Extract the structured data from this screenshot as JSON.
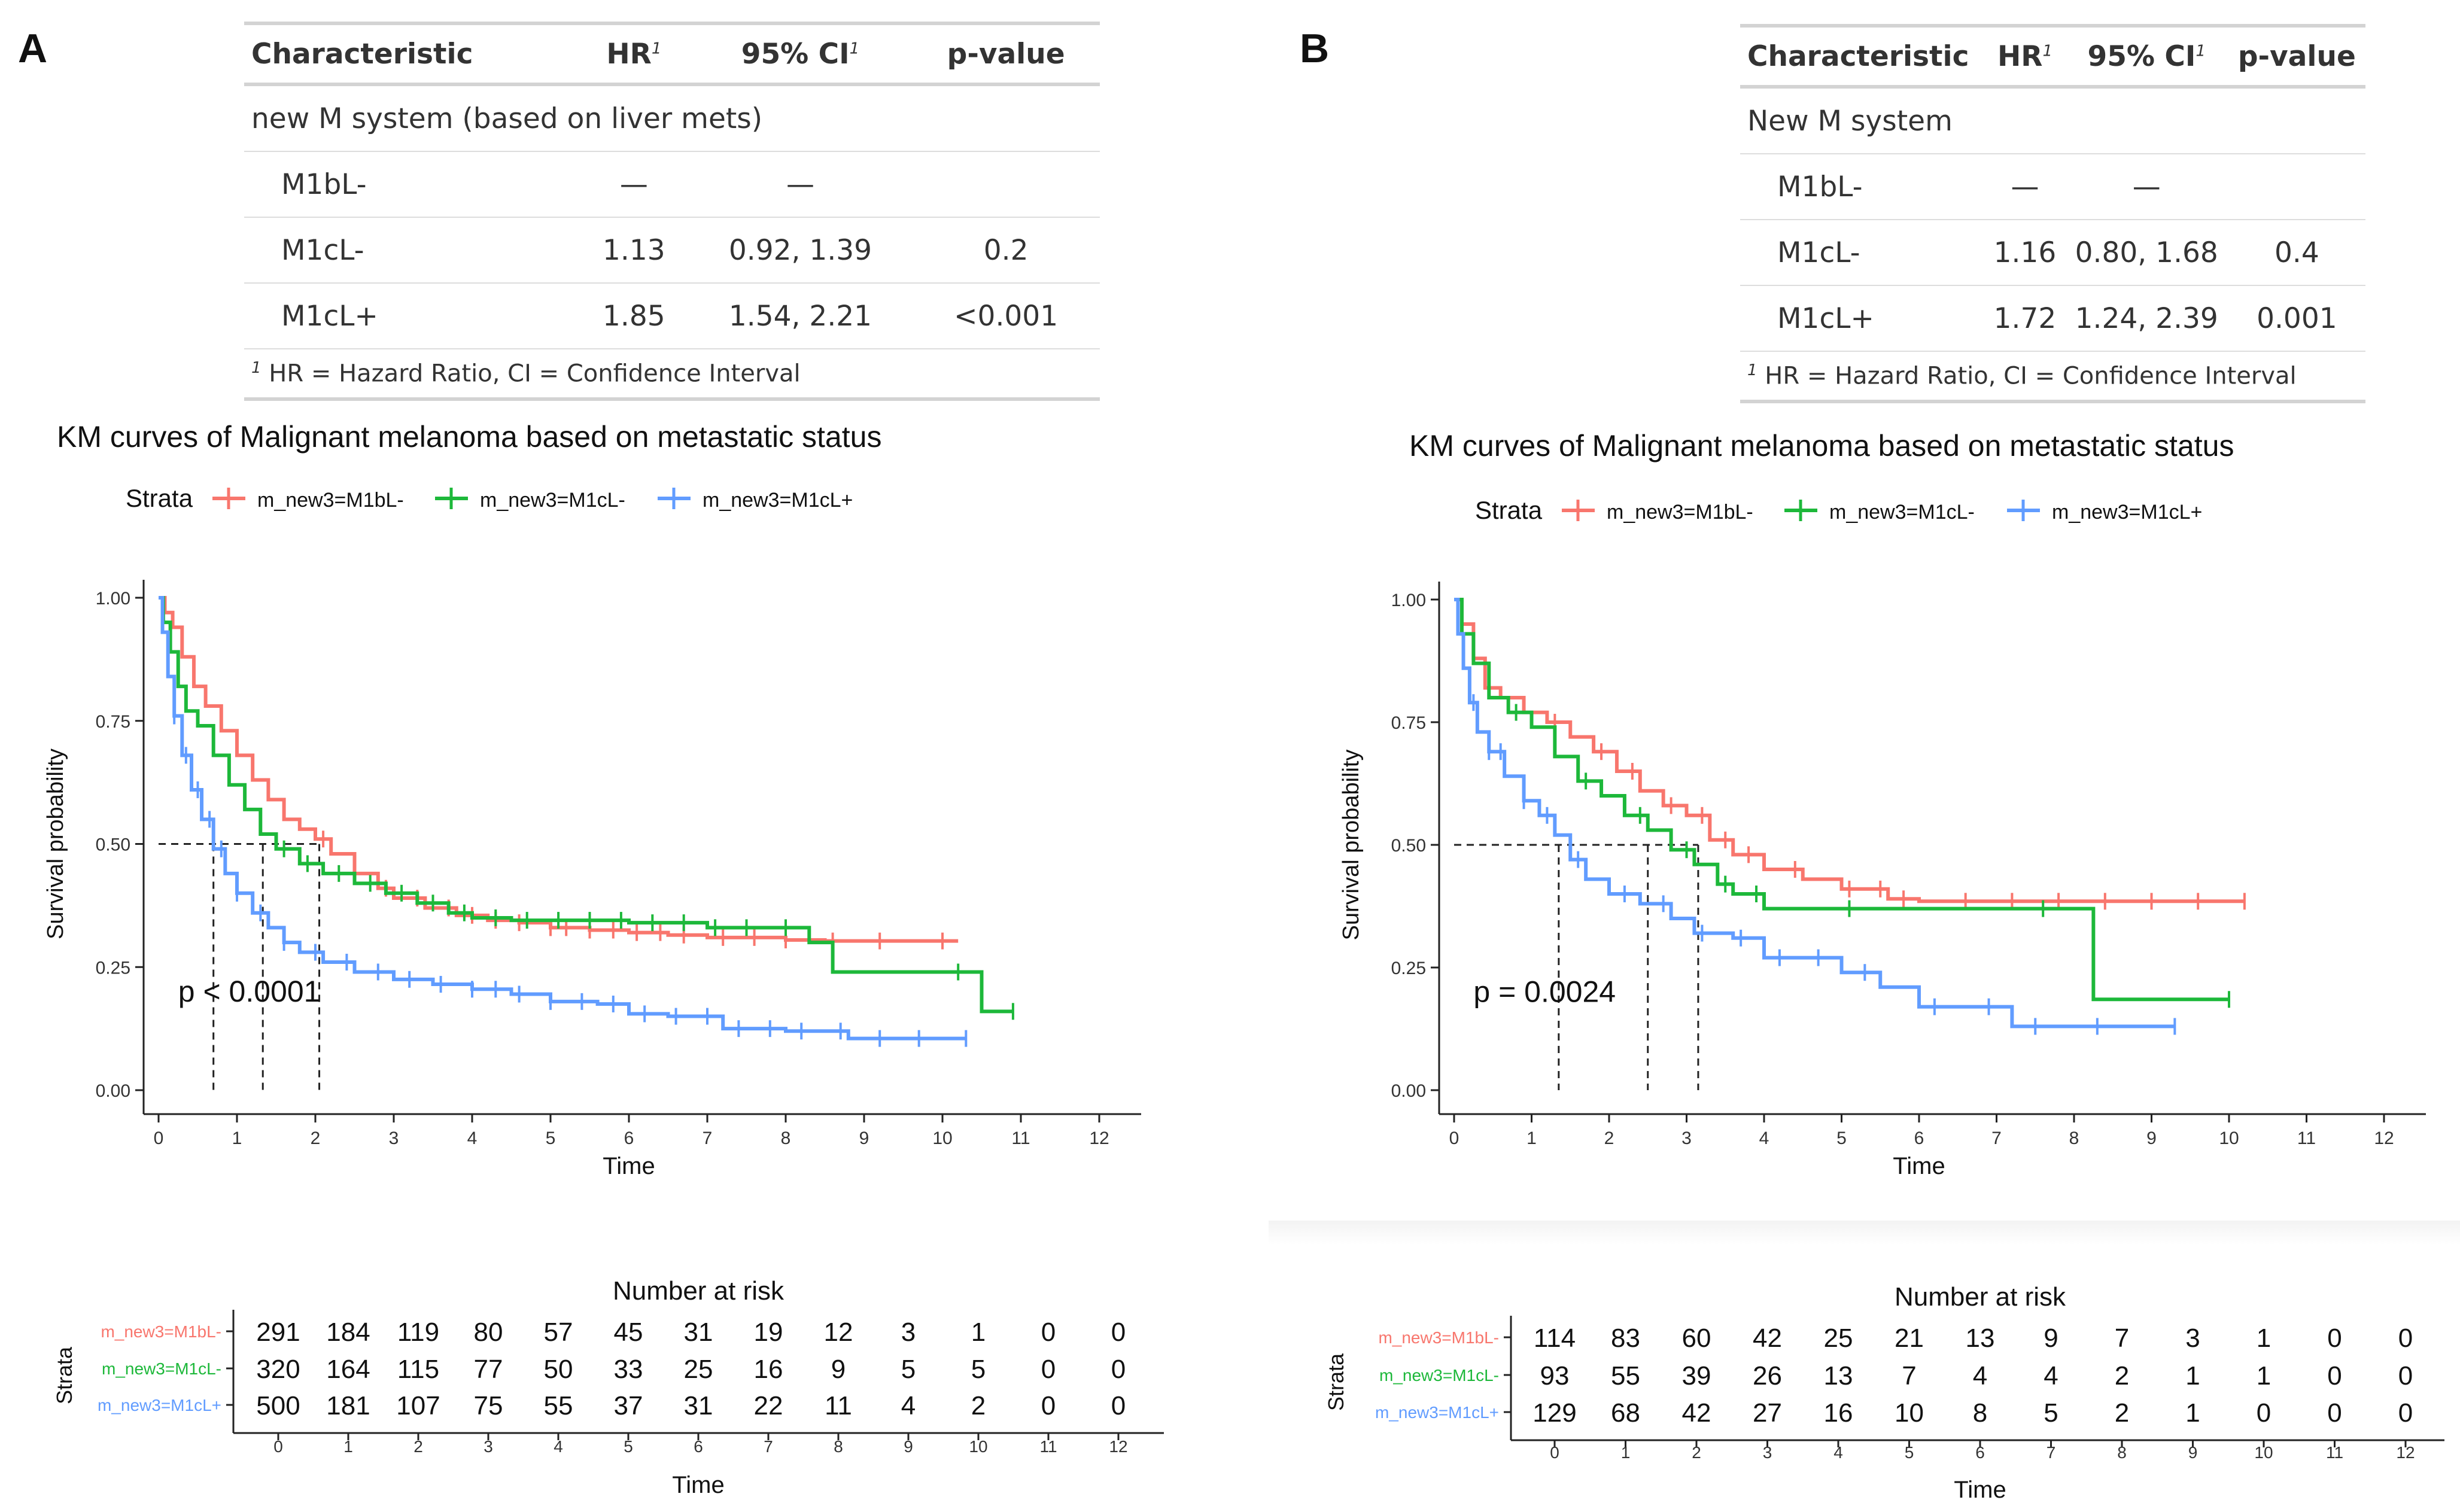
{
  "panels": [
    {
      "letter": "A",
      "table": {
        "headers": {
          "characteristic": "Characteristic",
          "hr": "HR",
          "ci": "95% CI",
          "p": "p-value",
          "sup": "1"
        },
        "group_label": "new M system (based on liver mets)",
        "rows": [
          {
            "label": "M1bL-",
            "hr": "—",
            "ci": "—",
            "p": ""
          },
          {
            "label": "M1cL-",
            "hr": "1.13",
            "ci": "0.92, 1.39",
            "p": "0.2"
          },
          {
            "label": "M1cL+",
            "hr": "1.85",
            "ci": "1.54, 2.21",
            "p": "<0.001"
          }
        ],
        "footnote_sup": "1",
        "footnote": "HR = Hazard Ratio, CI = Confidence Interval"
      }
    },
    {
      "letter": "B",
      "table": {
        "headers": {
          "characteristic": "Characteristic",
          "hr": "HR",
          "ci": "95% CI",
          "p": "p-value",
          "sup": "1"
        },
        "group_label": "New M system",
        "rows": [
          {
            "label": "M1bL-",
            "hr": "—",
            "ci": "—",
            "p": ""
          },
          {
            "label": "M1cL-",
            "hr": "1.16",
            "ci": "0.80, 1.68",
            "p": "0.4"
          },
          {
            "label": "M1cL+",
            "hr": "1.72",
            "ci": "1.24, 2.39",
            "p": "0.001"
          }
        ],
        "footnote_sup": "1",
        "footnote": "HR = Hazard Ratio, CI = Confidence Interval"
      }
    }
  ],
  "colors": {
    "M1bL-": "#F8766D",
    "M1cL-": "#1DB83A",
    "M1cL+": "#619CFF"
  },
  "chart_data": [
    {
      "type": "line",
      "subtype": "kaplan-meier",
      "panel": "A",
      "title": "KM curves of Malignant melanoma based on metastatic status",
      "legend_title": "Strata",
      "xlabel": "Time",
      "ylabel": "Survival probability",
      "xlim": [
        0,
        12
      ],
      "ylim": [
        0,
        1
      ],
      "x_ticks": [
        0,
        1,
        2,
        3,
        4,
        5,
        6,
        7,
        8,
        9,
        10,
        11,
        12
      ],
      "y_ticks": [
        "0.00",
        "0.25",
        "0.50",
        "0.75",
        "1.00"
      ],
      "pvalue_text": "p < 0.0001",
      "median_line": {
        "y": 0.5,
        "medians": [
          0.7,
          1.33,
          2.05
        ]
      },
      "series": [
        {
          "name": "m_new3=M1bL-",
          "color": "#F8766D",
          "points": [
            [
              0,
              1
            ],
            [
              0.08,
              0.97
            ],
            [
              0.18,
              0.94
            ],
            [
              0.3,
              0.88
            ],
            [
              0.45,
              0.82
            ],
            [
              0.6,
              0.78
            ],
            [
              0.8,
              0.73
            ],
            [
              1.0,
              0.68
            ],
            [
              1.2,
              0.63
            ],
            [
              1.4,
              0.59
            ],
            [
              1.6,
              0.55
            ],
            [
              1.8,
              0.53
            ],
            [
              2.0,
              0.51
            ],
            [
              2.2,
              0.48
            ],
            [
              2.5,
              0.44
            ],
            [
              2.8,
              0.41
            ],
            [
              3.0,
              0.39
            ],
            [
              3.4,
              0.37
            ],
            [
              3.8,
              0.355
            ],
            [
              4.2,
              0.345
            ],
            [
              4.6,
              0.34
            ],
            [
              5.0,
              0.33
            ],
            [
              5.5,
              0.325
            ],
            [
              6.0,
              0.32
            ],
            [
              6.5,
              0.315
            ],
            [
              7.0,
              0.31
            ],
            [
              8.0,
              0.305
            ],
            [
              8.5,
              0.303
            ],
            [
              10.2,
              0.303
            ]
          ],
          "censor_x": [
            2.1,
            2.5,
            2.9,
            3.3,
            3.7,
            4.0,
            4.3,
            4.6,
            5.0,
            5.2,
            5.5,
            5.8,
            6.1,
            6.4,
            6.7,
            7.2,
            7.6,
            8.0,
            8.6,
            9.2,
            10.0
          ]
        },
        {
          "name": "m_new3=M1cL-",
          "color": "#1DB83A",
          "points": [
            [
              0,
              1
            ],
            [
              0.06,
              0.95
            ],
            [
              0.15,
              0.89
            ],
            [
              0.25,
              0.82
            ],
            [
              0.35,
              0.77
            ],
            [
              0.5,
              0.74
            ],
            [
              0.7,
              0.68
            ],
            [
              0.9,
              0.62
            ],
            [
              1.1,
              0.57
            ],
            [
              1.3,
              0.52
            ],
            [
              1.5,
              0.49
            ],
            [
              1.8,
              0.46
            ],
            [
              2.1,
              0.44
            ],
            [
              2.5,
              0.42
            ],
            [
              2.9,
              0.4
            ],
            [
              3.3,
              0.38
            ],
            [
              3.7,
              0.36
            ],
            [
              4.0,
              0.35
            ],
            [
              4.5,
              0.345
            ],
            [
              5.0,
              0.345
            ],
            [
              6.0,
              0.34
            ],
            [
              7.0,
              0.33
            ],
            [
              7.5,
              0.33
            ],
            [
              8.3,
              0.3
            ],
            [
              8.6,
              0.24
            ],
            [
              10.5,
              0.24
            ],
            [
              10.5,
              0.16
            ],
            [
              10.9,
              0.16
            ]
          ],
          "censor_x": [
            1.6,
            1.9,
            2.3,
            2.7,
            3.1,
            3.5,
            3.9,
            4.3,
            4.7,
            5.1,
            5.5,
            5.9,
            6.3,
            6.7,
            7.1,
            7.5,
            8.0,
            10.2,
            10.9
          ]
        },
        {
          "name": "m_new3=M1cL+",
          "color": "#619CFF",
          "points": [
            [
              0,
              1
            ],
            [
              0.05,
              0.93
            ],
            [
              0.12,
              0.84
            ],
            [
              0.2,
              0.76
            ],
            [
              0.3,
              0.68
            ],
            [
              0.42,
              0.61
            ],
            [
              0.55,
              0.55
            ],
            [
              0.7,
              0.49
            ],
            [
              0.85,
              0.44
            ],
            [
              1.0,
              0.4
            ],
            [
              1.2,
              0.36
            ],
            [
              1.4,
              0.33
            ],
            [
              1.6,
              0.3
            ],
            [
              1.8,
              0.28
            ],
            [
              2.1,
              0.26
            ],
            [
              2.5,
              0.24
            ],
            [
              3.0,
              0.225
            ],
            [
              3.5,
              0.215
            ],
            [
              4.0,
              0.205
            ],
            [
              4.5,
              0.195
            ],
            [
              5.0,
              0.18
            ],
            [
              5.6,
              0.175
            ],
            [
              6.0,
              0.155
            ],
            [
              6.5,
              0.15
            ],
            [
              7.2,
              0.125
            ],
            [
              8.0,
              0.12
            ],
            [
              8.8,
              0.105
            ],
            [
              10.3,
              0.105
            ]
          ],
          "censor_x": [
            0.2,
            0.35,
            0.5,
            0.65,
            0.8,
            1.0,
            1.3,
            1.6,
            2.0,
            2.4,
            2.8,
            3.2,
            3.6,
            4.0,
            4.3,
            4.6,
            5.0,
            5.4,
            5.8,
            6.2,
            6.6,
            7.0,
            7.4,
            7.8,
            8.2,
            8.7,
            9.2,
            9.7,
            10.3
          ]
        }
      ],
      "risk_table": {
        "title": "Number at risk",
        "ylabel": "Strata",
        "xlabel": "Time",
        "x_ticks": [
          0,
          1,
          2,
          3,
          4,
          5,
          6,
          7,
          8,
          9,
          10,
          11,
          12
        ],
        "rows": [
          {
            "name": "m_new3=M1bL-",
            "color": "#F8766D",
            "values": [
              291,
              184,
              119,
              80,
              57,
              45,
              31,
              19,
              12,
              3,
              1,
              0,
              0
            ]
          },
          {
            "name": "m_new3=M1cL-",
            "color": "#1DB83A",
            "values": [
              320,
              164,
              115,
              77,
              50,
              33,
              25,
              16,
              9,
              5,
              5,
              0,
              0
            ]
          },
          {
            "name": "m_new3=M1cL+",
            "color": "#619CFF",
            "values": [
              500,
              181,
              107,
              75,
              55,
              37,
              31,
              22,
              11,
              4,
              2,
              0,
              0
            ]
          }
        ]
      }
    },
    {
      "type": "line",
      "subtype": "kaplan-meier",
      "panel": "B",
      "title": "KM curves of Malignant melanoma based on metastatic status",
      "legend_title": "Strata",
      "xlabel": "Time",
      "ylabel": "Survival probability",
      "xlim": [
        0,
        12
      ],
      "ylim": [
        0,
        1
      ],
      "x_ticks": [
        0,
        1,
        2,
        3,
        4,
        5,
        6,
        7,
        8,
        9,
        10,
        11,
        12
      ],
      "y_ticks": [
        "0.00",
        "0.25",
        "0.50",
        "0.75",
        "1.00"
      ],
      "pvalue_text": "p = 0.0024",
      "median_line": {
        "y": 0.5,
        "medians": [
          1.35,
          2.5,
          3.15
        ]
      },
      "series": [
        {
          "name": "m_new3=M1bL-",
          "color": "#F8766D",
          "points": [
            [
              0,
              1
            ],
            [
              0.1,
              0.95
            ],
            [
              0.25,
              0.88
            ],
            [
              0.4,
              0.82
            ],
            [
              0.6,
              0.8
            ],
            [
              0.9,
              0.77
            ],
            [
              1.2,
              0.75
            ],
            [
              1.5,
              0.72
            ],
            [
              1.8,
              0.69
            ],
            [
              2.1,
              0.65
            ],
            [
              2.4,
              0.61
            ],
            [
              2.7,
              0.58
            ],
            [
              3.0,
              0.56
            ],
            [
              3.3,
              0.51
            ],
            [
              3.6,
              0.48
            ],
            [
              4.0,
              0.45
            ],
            [
              4.5,
              0.43
            ],
            [
              5.0,
              0.41
            ],
            [
              5.6,
              0.39
            ],
            [
              6.0,
              0.385
            ],
            [
              7.0,
              0.385
            ],
            [
              8.0,
              0.385
            ],
            [
              9.0,
              0.385
            ],
            [
              10.2,
              0.385
            ]
          ],
          "censor_x": [
            1.3,
            1.9,
            2.3,
            2.8,
            3.2,
            3.5,
            3.8,
            4.4,
            5.1,
            5.5,
            5.8,
            6.6,
            7.2,
            7.8,
            8.4,
            9.0,
            9.6,
            10.2
          ]
        },
        {
          "name": "m_new3=M1cL-",
          "color": "#1DB83A",
          "points": [
            [
              0,
              1
            ],
            [
              0.1,
              0.93
            ],
            [
              0.25,
              0.87
            ],
            [
              0.45,
              0.8
            ],
            [
              0.7,
              0.77
            ],
            [
              1.0,
              0.74
            ],
            [
              1.3,
              0.68
            ],
            [
              1.6,
              0.63
            ],
            [
              1.9,
              0.6
            ],
            [
              2.2,
              0.56
            ],
            [
              2.5,
              0.53
            ],
            [
              2.8,
              0.49
            ],
            [
              3.1,
              0.46
            ],
            [
              3.4,
              0.42
            ],
            [
              3.6,
              0.4
            ],
            [
              4.0,
              0.37
            ],
            [
              5.0,
              0.37
            ],
            [
              6.0,
              0.37
            ],
            [
              7.0,
              0.37
            ],
            [
              8.2,
              0.37
            ],
            [
              8.25,
              0.185
            ],
            [
              10.0,
              0.185
            ]
          ],
          "censor_x": [
            0.8,
            1.7,
            2.4,
            3.0,
            3.5,
            3.9,
            5.1,
            7.6,
            10.0
          ]
        },
        {
          "name": "m_new3=M1cL+",
          "color": "#619CFF",
          "points": [
            [
              0,
              1
            ],
            [
              0.05,
              0.93
            ],
            [
              0.12,
              0.86
            ],
            [
              0.2,
              0.79
            ],
            [
              0.3,
              0.73
            ],
            [
              0.45,
              0.69
            ],
            [
              0.65,
              0.64
            ],
            [
              0.9,
              0.59
            ],
            [
              1.1,
              0.56
            ],
            [
              1.3,
              0.52
            ],
            [
              1.5,
              0.47
            ],
            [
              1.7,
              0.43
            ],
            [
              2.0,
              0.4
            ],
            [
              2.4,
              0.38
            ],
            [
              2.8,
              0.35
            ],
            [
              3.1,
              0.32
            ],
            [
              3.6,
              0.31
            ],
            [
              4.0,
              0.27
            ],
            [
              4.5,
              0.27
            ],
            [
              5.0,
              0.24
            ],
            [
              5.5,
              0.21
            ],
            [
              6.0,
              0.17
            ],
            [
              6.6,
              0.17
            ],
            [
              7.2,
              0.13
            ],
            [
              8.0,
              0.13
            ],
            [
              9.3,
              0.13
            ]
          ],
          "censor_x": [
            0.25,
            0.45,
            0.6,
            0.9,
            1.2,
            1.6,
            2.2,
            2.7,
            3.2,
            3.7,
            4.2,
            4.7,
            5.3,
            6.2,
            6.9,
            7.5,
            8.3,
            9.3
          ]
        }
      ],
      "risk_table": {
        "title": "Number at risk",
        "ylabel": "Strata",
        "xlabel": "Time",
        "x_ticks": [
          0,
          1,
          2,
          3,
          4,
          5,
          6,
          7,
          8,
          9,
          10,
          11,
          12
        ],
        "rows": [
          {
            "name": "m_new3=M1bL-",
            "color": "#F8766D",
            "values": [
              114,
              83,
              60,
              42,
              25,
              21,
              13,
              9,
              7,
              3,
              1,
              0,
              0
            ]
          },
          {
            "name": "m_new3=M1cL-",
            "color": "#1DB83A",
            "values": [
              93,
              55,
              39,
              26,
              13,
              7,
              4,
              4,
              2,
              1,
              1,
              0,
              0
            ]
          },
          {
            "name": "m_new3=M1cL+",
            "color": "#619CFF",
            "values": [
              129,
              68,
              42,
              27,
              16,
              10,
              8,
              5,
              2,
              1,
              0,
              0,
              0
            ]
          }
        ]
      }
    }
  ]
}
